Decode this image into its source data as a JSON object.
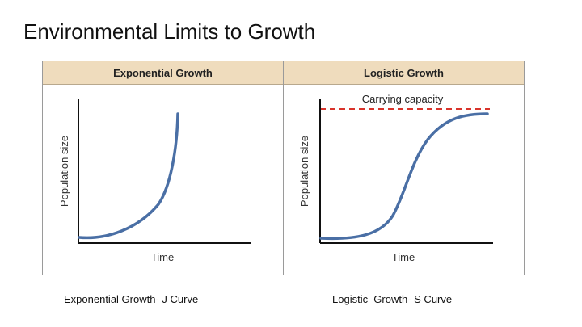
{
  "slide": {
    "title": "Environmental Limits to Growth"
  },
  "panels": {
    "exponential": {
      "header": "Exponential Growth",
      "ylabel": "Population size",
      "xlabel": "Time",
      "curve": "J-shaped"
    },
    "logistic": {
      "header": "Logistic Growth",
      "ylabel": "Population size",
      "xlabel": "Time",
      "curve": "S-shaped",
      "capacity_label": "Carrying capacity"
    }
  },
  "captions": {
    "left": "Exponential Growth- J Curve",
    "right": "Logistic  Growth- S Curve"
  },
  "colors": {
    "header_bg": "#efdcbd",
    "curve": "#4a6fa5",
    "capacity_line": "#d9342b",
    "axis": "#111111"
  }
}
